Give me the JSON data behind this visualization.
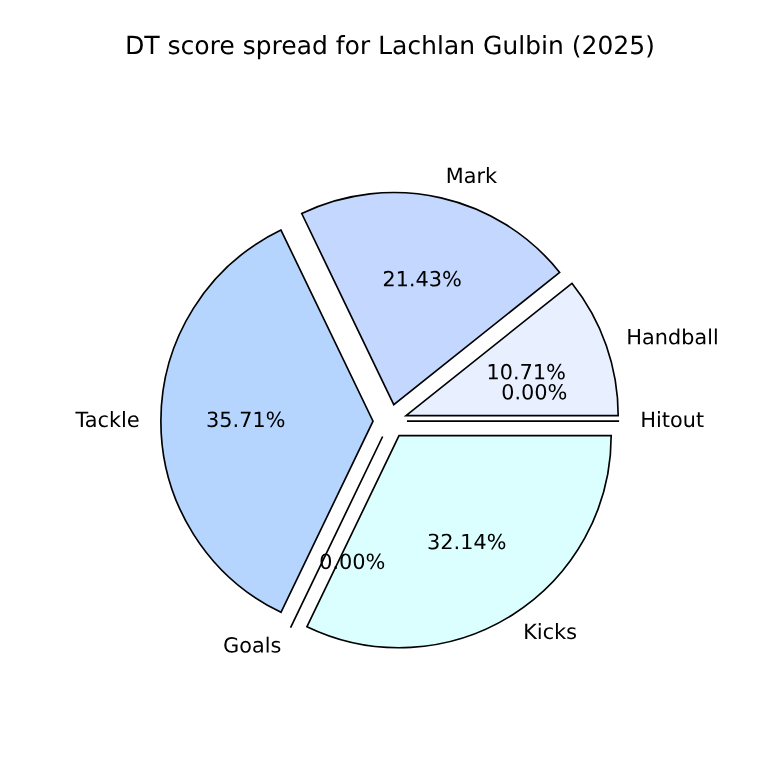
{
  "chart_data": {
    "type": "pie",
    "title": "DT score spread for Lachlan Gulbin (2025)",
    "categories": [
      "Handball",
      "Mark",
      "Tackle",
      "Goals",
      "Kicks",
      "Hitout"
    ],
    "values": [
      10.71,
      21.43,
      35.71,
      0,
      32.14,
      0
    ],
    "value_labels": [
      "10.71%",
      "21.43%",
      "35.71%",
      "0.00%",
      "32.14%",
      "0.00%"
    ],
    "colors": [
      "#e8f0ff",
      "#c4d8ff",
      "#b5d5ff",
      "#c8f0ff",
      "#dbffff",
      "#f0f8ff"
    ]
  }
}
